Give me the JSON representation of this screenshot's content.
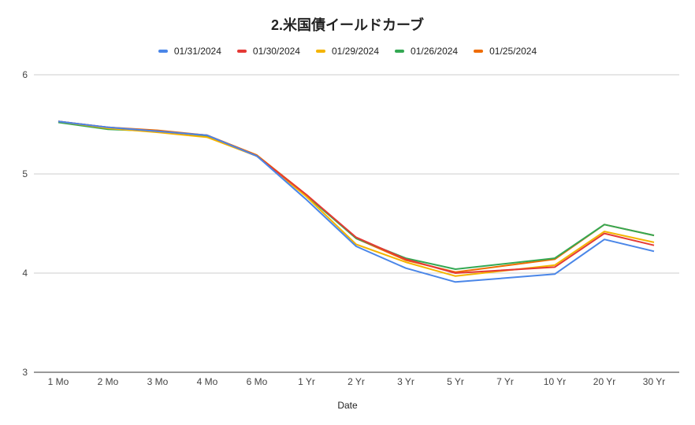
{
  "chart_data": {
    "type": "line",
    "title": "2.米国債イールドカーブ",
    "xlabel": "Date",
    "ylabel": "",
    "categories": [
      "1 Mo",
      "2 Mo",
      "3 Mo",
      "4 Mo",
      "6 Mo",
      "1 Yr",
      "2 Yr",
      "3 Yr",
      "5 Yr",
      "7 Yr",
      "10 Yr",
      "20 Yr",
      "30 Yr"
    ],
    "ylim": [
      3,
      6
    ],
    "yticks": [
      3,
      4,
      5,
      6
    ],
    "grid": true,
    "legend_position": "top",
    "series": [
      {
        "name": "01/31/2024",
        "color": "#4a86e8",
        "values": [
          5.53,
          5.47,
          5.43,
          5.39,
          5.18,
          4.74,
          4.27,
          4.05,
          3.91,
          null,
          3.99,
          4.34,
          4.22
        ]
      },
      {
        "name": "01/30/2024",
        "color": "#e53935",
        "values": [
          5.53,
          5.47,
          5.43,
          5.39,
          5.18,
          4.79,
          4.36,
          4.14,
          4.0,
          null,
          4.06,
          4.4,
          4.28
        ]
      },
      {
        "name": "01/29/2024",
        "color": "#f4b400",
        "values": [
          5.53,
          5.46,
          5.42,
          5.37,
          5.18,
          4.77,
          4.29,
          4.11,
          3.97,
          null,
          4.08,
          4.42,
          4.31
        ]
      },
      {
        "name": "01/26/2024",
        "color": "#34a853",
        "values": [
          5.52,
          5.45,
          5.43,
          5.38,
          5.18,
          4.78,
          4.35,
          4.15,
          4.04,
          null,
          4.15,
          4.49,
          4.38
        ]
      },
      {
        "name": "01/25/2024",
        "color": "#ef6c00",
        "values": [
          5.53,
          5.47,
          5.44,
          5.39,
          5.19,
          4.79,
          4.35,
          4.13,
          4.01,
          null,
          4.14,
          4.49,
          4.38
        ]
      }
    ]
  }
}
